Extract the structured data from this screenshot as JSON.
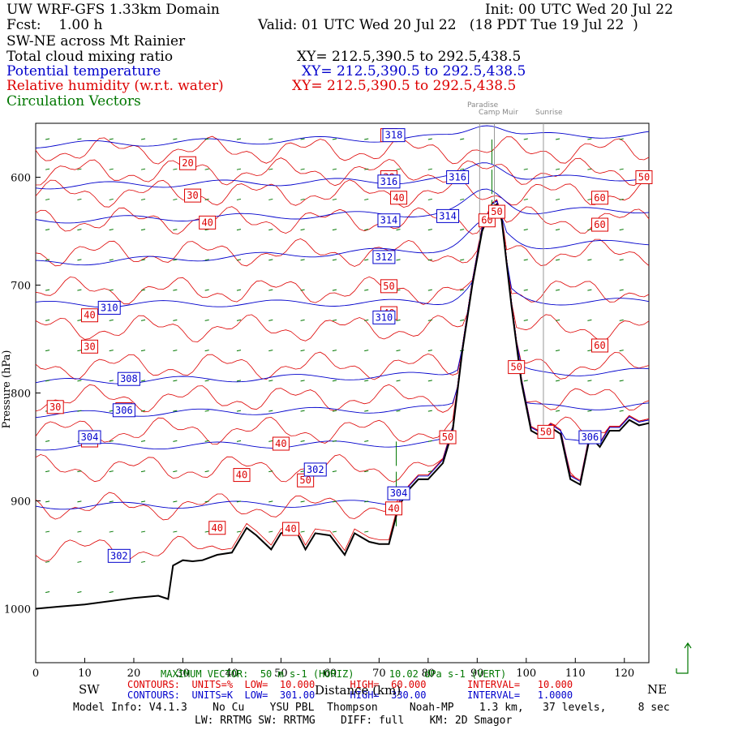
{
  "header": {
    "title": "UW WRF-GFS 1.33km Domain",
    "init": "Init: 00 UTC Wed 20 Jul 22",
    "fcst": "Fcst:    1.00 h",
    "valid": "Valid: 01 UTC Wed 20 Jul 22   (18 PDT Tue 19 Jul 22  )",
    "section": "SW-NE across Mt Rainier",
    "fields": [
      {
        "label": "Total cloud mixing ratio",
        "xy": "XY= 212.5,390.5 to 292.5,438.5",
        "color": "#000000"
      },
      {
        "label": "Potential temperature",
        "xy": "XY= 212.5,390.5 to 292.5,438.5",
        "color": "#0000cc"
      },
      {
        "label": "Relative humidity (w.r.t. water)",
        "xy": "XY= 212.5,390.5 to 292.5,438.5",
        "color": "#dd0000"
      },
      {
        "label": "Circulation Vectors",
        "xy": "",
        "color": "#007700"
      }
    ]
  },
  "locations": [
    "Paradise",
    "Camp Muir",
    "Sunrise"
  ],
  "footer": {
    "vector_line": "MAXIMUM VECTOR:  50 m s-1 (HORIZ)      10.02 dPa s-1 (VERT)",
    "rh_contours": "CONTOURS:  UNITS=%  LOW=  10.000      HIGH=  60.000       INTERVAL=   10.000",
    "th_contours": "CONTOURS:  UNITS=K  LOW=  301.00      HIGH=  330.00       INTERVAL=   1.0000",
    "model_info": "Model Info: V4.1.3    No Cu    YSU PBL  Thompson     Noah-MP    1.3 km,   37 levels,     8 sec",
    "physics": "LW: RRTMG SW: RRTMG    DIFF: full    KM: 2D Smagor",
    "sw": "SW",
    "ne": "NE",
    "xlabel": "Distance (km)"
  },
  "chart_data": {
    "type": "line",
    "title": "SW-NE across Mt Rainier",
    "xlabel": "Distance (km)",
    "ylabel": "Pressure (hPa)",
    "xlim": [
      0,
      125
    ],
    "ylim": [
      1050,
      550
    ],
    "x_ticks": [
      0,
      10,
      20,
      30,
      40,
      50,
      60,
      70,
      80,
      90,
      100,
      110,
      120
    ],
    "y_ticks": [
      600,
      700,
      800,
      900,
      1000
    ],
    "y_tick_labels": [
      "600",
      "700",
      "800",
      "900",
      "1000"
    ],
    "grid": false,
    "terrain": {
      "x": [
        0,
        5,
        10,
        15,
        20,
        25,
        27,
        28,
        30,
        32,
        34,
        37,
        40,
        43,
        45,
        48,
        50,
        53,
        55,
        57,
        60,
        63,
        65,
        68,
        70,
        72,
        74,
        76,
        78,
        80,
        83,
        85,
        87,
        89,
        91,
        93,
        94,
        95,
        97,
        99,
        101,
        103,
        105,
        107,
        109,
        111,
        113,
        115,
        117,
        119,
        121,
        123,
        125
      ],
      "p": [
        1000,
        998,
        996,
        993,
        990,
        988,
        991,
        960,
        955,
        956,
        955,
        950,
        948,
        925,
        932,
        945,
        930,
        927,
        945,
        930,
        932,
        950,
        930,
        938,
        940,
        940,
        905,
        890,
        880,
        880,
        865,
        835,
        760,
        700,
        650,
        628,
        625,
        640,
        720,
        790,
        835,
        840,
        832,
        838,
        880,
        885,
        840,
        850,
        835,
        835,
        825,
        830,
        828
      ]
    },
    "theta_contours": [
      {
        "value": 302,
        "p0": 905,
        "p1": 900
      },
      {
        "value": 304,
        "p0": 850,
        "p1": 845
      },
      {
        "value": 306,
        "p0": 820,
        "p1": 812
      },
      {
        "value": 308,
        "p0": 790,
        "p1": 780
      },
      {
        "value": 310,
        "p0": 718,
        "p1": 715
      },
      {
        "value": 312,
        "p0": 680,
        "p1": 660
      },
      {
        "value": 314,
        "p0": 640,
        "p1": 630
      },
      {
        "value": 316,
        "p0": 608,
        "p1": 600
      },
      {
        "value": 318,
        "p0": 570,
        "p1": 560
      }
    ],
    "theta_labels": [
      {
        "text": "302",
        "x": 17,
        "p": 951
      },
      {
        "text": "304",
        "x": 11,
        "p": 841
      },
      {
        "text": "304",
        "x": 74,
        "p": 893
      },
      {
        "text": "302",
        "x": 57,
        "p": 871
      },
      {
        "text": "306",
        "x": 18,
        "p": 816
      },
      {
        "text": "306",
        "x": 113,
        "p": 841
      },
      {
        "text": "308",
        "x": 19,
        "p": 787
      },
      {
        "text": "310",
        "x": 15,
        "p": 721
      },
      {
        "text": "310",
        "x": 71,
        "p": 730
      },
      {
        "text": "312",
        "x": 71,
        "p": 674
      },
      {
        "text": "314",
        "x": 72,
        "p": 640
      },
      {
        "text": "314",
        "x": 84,
        "p": 636
      },
      {
        "text": "316",
        "x": 86,
        "p": 600
      },
      {
        "text": "316",
        "x": 72,
        "p": 604
      },
      {
        "text": "318",
        "x": 73,
        "p": 561
      }
    ],
    "rh_labels": [
      {
        "text": "20",
        "x": 31,
        "p": 587
      },
      {
        "text": "30",
        "x": 32,
        "p": 617
      },
      {
        "text": "40",
        "x": 35,
        "p": 642
      },
      {
        "text": "20",
        "x": 72,
        "p": 561
      },
      {
        "text": "30",
        "x": 72,
        "p": 600
      },
      {
        "text": "40",
        "x": 74,
        "p": 619
      },
      {
        "text": "50",
        "x": 124,
        "p": 600
      },
      {
        "text": "60",
        "x": 115,
        "p": 619
      },
      {
        "text": "60",
        "x": 115,
        "p": 644
      },
      {
        "text": "60",
        "x": 92,
        "p": 640
      },
      {
        "text": "50",
        "x": 72,
        "p": 701
      },
      {
        "text": "40",
        "x": 72,
        "p": 726
      },
      {
        "text": "40",
        "x": 11,
        "p": 728
      },
      {
        "text": "30",
        "x": 11,
        "p": 757
      },
      {
        "text": "60",
        "x": 115,
        "p": 756
      },
      {
        "text": "50",
        "x": 98,
        "p": 776
      },
      {
        "text": "30",
        "x": 4,
        "p": 813
      },
      {
        "text": "30",
        "x": 18,
        "p": 815
      },
      {
        "text": "30",
        "x": 11,
        "p": 844
      },
      {
        "text": "40",
        "x": 50,
        "p": 847
      },
      {
        "text": "40",
        "x": 42,
        "p": 876
      },
      {
        "text": "50",
        "x": 55,
        "p": 881
      },
      {
        "text": "40",
        "x": 37,
        "p": 925
      },
      {
        "text": "40",
        "x": 52,
        "p": 926
      },
      {
        "text": "40",
        "x": 73,
        "p": 907
      },
      {
        "text": "50",
        "x": 84,
        "p": 841
      },
      {
        "text": "50",
        "x": 104,
        "p": 836
      },
      {
        "text": "50",
        "x": 94,
        "p": 632
      }
    ],
    "station_x": [
      90.5,
      93.5,
      103.5
    ],
    "colors": {
      "theta": "#0000cc",
      "rh": "#dd0000",
      "vectors": "#007700",
      "terrain": "#000000",
      "station": "#999999"
    }
  }
}
